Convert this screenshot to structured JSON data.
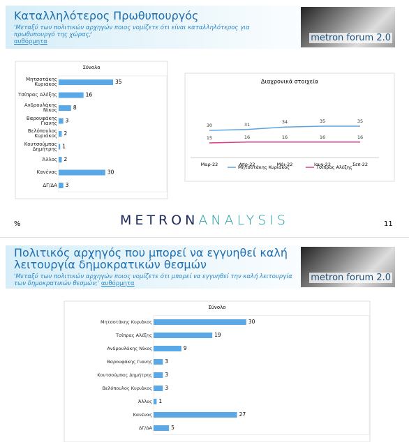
{
  "slides": [
    {
      "title": "Καταλληλότερος Πρωθυπουργός",
      "question": "'Μεταξύ των πολιτικών αρχηγών ποιος νομίζετε ότι είναι καταλληλότερος για πρωθυπουργό της χώρας;'",
      "link": "αυθόρμητα",
      "badge": "metron forum 2.0"
    },
    {
      "title": "Πολιτικός αρχηγός που μπορεί να εγγυηθεί καλή λειτουργία δημοκρατικών θεσμών",
      "question": "'Μεταξύ των πολιτικών αρχηγών ποιος νομίζετε ότι μπορεί να εγγυηθεί την καλή λειτουργία των δημοκρατικών θεσμών;'",
      "link": "αυθόρμητα",
      "badge": "metron forum 2.0"
    }
  ],
  "footer": {
    "unit": "%",
    "logo_1": "METRON",
    "logo_2": "ANALYSIS",
    "page": 11
  },
  "chart_data": [
    {
      "type": "barh",
      "title": "Σύνολο",
      "categories": [
        "Μητσοτάκης Κυριάκος",
        "Τσίπρας Αλέξης",
        "Ανδρουλάκης Νίκος",
        "Βαρουφάκης Γιανης",
        "Βελόπουλος Κυριάκος",
        "Κουτσούμπας Δημήτρης",
        "Άλλος",
        "Κανένας",
        "ΔΓ/ΔΑ"
      ],
      "values": [
        35,
        16,
        8,
        3,
        2,
        1,
        2,
        30,
        3
      ],
      "color": "#5aa9e6",
      "xlim": [
        0,
        70
      ]
    },
    {
      "type": "line",
      "title": "Διαχρονικά στοιχεία",
      "categories": [
        "Μαρ-22",
        "Απρ-22",
        "Μάι-22",
        "Ιουν-22",
        "Σεπ-22"
      ],
      "series": [
        {
          "name": "Μητσοτάκης Κυριάκος",
          "color": "#5ba3e0",
          "values": [
            30,
            31,
            34,
            35,
            35
          ]
        },
        {
          "name": "Τσίπρας Αλέξης",
          "color": "#e0388f",
          "values": [
            15,
            16,
            16,
            16,
            16
          ]
        }
      ],
      "ylim": [
        0,
        50
      ]
    },
    {
      "type": "barh",
      "title": "Σύνολο",
      "categories": [
        "Μητσοτάκης Κυριάκος",
        "Τσίπρας Αλέξης",
        "Ανδρουλάκης Νίκος",
        "Βαρουφάκης Γιανης",
        "Κουτσούμπας Δημήτρης",
        "Βελόπουλος Κυριάκος",
        "Άλλος",
        "Κανένας",
        "ΔΓ/ΔΑ"
      ],
      "values": [
        30,
        19,
        9,
        3,
        3,
        3,
        1,
        27,
        5
      ],
      "color": "#5aa9e6",
      "xlim": [
        0,
        70
      ]
    }
  ]
}
